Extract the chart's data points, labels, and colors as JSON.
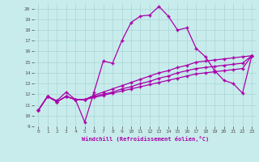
{
  "xlabel": "Windchill (Refroidissement éolien,°C)",
  "xlim": [
    -0.5,
    23.5
  ],
  "ylim": [
    9,
    20.5
  ],
  "xticks": [
    0,
    1,
    2,
    3,
    4,
    5,
    6,
    7,
    8,
    9,
    10,
    11,
    12,
    13,
    14,
    15,
    16,
    17,
    18,
    19,
    20,
    21,
    22,
    23
  ],
  "yticks": [
    9,
    10,
    11,
    12,
    13,
    14,
    15,
    16,
    17,
    18,
    19,
    20
  ],
  "background_color": "#c8ecec",
  "line_color": "#aa00aa",
  "grid_color": "#aad4d4",
  "line1_y": [
    10.5,
    11.8,
    11.4,
    12.2,
    11.5,
    9.4,
    12.2,
    15.1,
    14.9,
    17.0,
    18.7,
    19.3,
    19.4,
    20.2,
    19.3,
    18.0,
    18.2,
    16.3,
    15.5,
    14.2,
    13.3,
    13.0,
    12.1,
    15.6
  ],
  "line2_y": [
    10.5,
    11.8,
    11.3,
    11.8,
    11.5,
    11.5,
    11.9,
    12.2,
    12.5,
    12.8,
    13.1,
    13.4,
    13.7,
    14.0,
    14.2,
    14.5,
    14.7,
    15.0,
    15.1,
    15.2,
    15.3,
    15.4,
    15.5,
    15.6
  ],
  "line3_y": [
    10.5,
    11.8,
    11.3,
    11.8,
    11.5,
    11.5,
    11.8,
    12.0,
    12.2,
    12.5,
    12.7,
    13.0,
    13.2,
    13.5,
    13.7,
    14.0,
    14.2,
    14.4,
    14.5,
    14.6,
    14.7,
    14.8,
    14.9,
    15.6
  ],
  "line4_y": [
    10.5,
    11.8,
    11.3,
    11.8,
    11.5,
    11.5,
    11.7,
    11.9,
    12.1,
    12.3,
    12.5,
    12.7,
    12.9,
    13.1,
    13.3,
    13.5,
    13.7,
    13.9,
    14.0,
    14.1,
    14.2,
    14.3,
    14.4,
    15.6
  ]
}
